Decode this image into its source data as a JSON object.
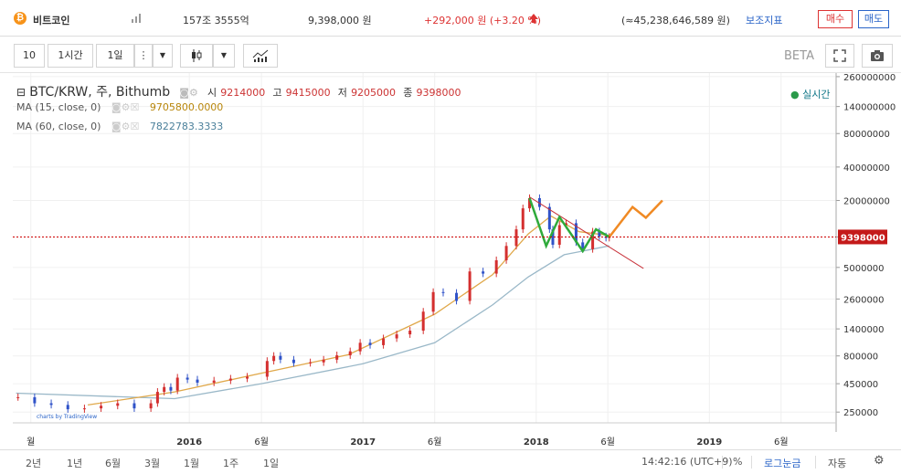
{
  "header": {
    "coin_name": "비트코인",
    "market_cap": "157조 3555억",
    "price": "9,398,000 원",
    "change": "+292,000 원 (+3.20 %)",
    "volume": "(≈45,238,646,589 원)",
    "indicator_label": "보조지표",
    "buy_label": "매수",
    "sell_label": "매도"
  },
  "toolbar": {
    "interval_num": "10",
    "interval_hour": "1시간",
    "interval_day": "1일",
    "beta": "BETA"
  },
  "legend": {
    "symbol": "BTC/KRW, 주, Bithumb",
    "open_label": "시",
    "open": "9214000",
    "high_label": "고",
    "high": "9415000",
    "low_label": "저",
    "low": "9205000",
    "close_label": "종",
    "close": "9398000",
    "ma15_label": "MA (15, close, 0)",
    "ma15_value": "9705800.0000",
    "ma60_label": "MA (60, close, 0)",
    "ma60_value": "7822783.3333",
    "live": "실시간"
  },
  "watermark": "charts by TradingView",
  "bottom": {
    "ranges": [
      "2년",
      "1년",
      "6월",
      "3월",
      "1월",
      "1주",
      "1일"
    ],
    "time": "14:42:16 (UTC+9)",
    "percent": "%",
    "log": "로그눈금",
    "auto": "자동"
  },
  "colors": {
    "up": "#d42f2f",
    "down": "#2f52c8",
    "ma15": "#e0a84a",
    "ma60": "#9ab8c8",
    "forecast": "#f08a24",
    "pattern": "#2eaa3a",
    "trend": "#c8323a"
  },
  "chart_data": {
    "type": "candlestick",
    "scale": "log",
    "ylim": [
      200000,
      280000000
    ],
    "y_ticks": [
      260000000,
      140000000,
      80000000,
      40000000,
      20000000,
      9398000,
      5000000,
      2600000,
      1400000,
      800000,
      450000,
      250000
    ],
    "y_tick_labels": [
      "260000000",
      "140000000",
      "80000000",
      "40000000",
      "20000000",
      "9398000",
      "5000000",
      "2600000",
      "1400000",
      "800000",
      "450000",
      "250000"
    ],
    "x_ticks": [
      "월",
      "2016",
      "6월",
      "2017",
      "6월",
      "2018",
      "6월",
      "2019",
      "6월"
    ],
    "x_tick_dates": [
      "2015-02-01",
      "2016-01-01",
      "2016-06-01",
      "2017-01-01",
      "2017-06-01",
      "2018-01-01",
      "2018-06-01",
      "2019-01-01",
      "2019-06-01"
    ],
    "current_price": 9398000,
    "weekly_close": [
      [
        "2015-01-05",
        340000
      ],
      [
        "2015-02-09",
        300000
      ],
      [
        "2015-03-16",
        290000
      ],
      [
        "2015-04-20",
        265000
      ],
      [
        "2015-05-25",
        270000
      ],
      [
        "2015-06-29",
        285000
      ],
      [
        "2015-08-03",
        300000
      ],
      [
        "2015-09-07",
        270000
      ],
      [
        "2015-10-12",
        300000
      ],
      [
        "2015-10-26",
        380000
      ],
      [
        "2015-11-09",
        420000
      ],
      [
        "2015-11-23",
        390000
      ],
      [
        "2015-12-07",
        510000
      ],
      [
        "2015-12-28",
        490000
      ],
      [
        "2016-01-18",
        460000
      ],
      [
        "2016-02-22",
        480000
      ],
      [
        "2016-03-28",
        500000
      ],
      [
        "2016-05-02",
        520000
      ],
      [
        "2016-06-13",
        720000
      ],
      [
        "2016-06-27",
        800000
      ],
      [
        "2016-07-11",
        740000
      ],
      [
        "2016-08-08",
        690000
      ],
      [
        "2016-09-12",
        700000
      ],
      [
        "2016-10-10",
        740000
      ],
      [
        "2016-11-07",
        810000
      ],
      [
        "2016-12-05",
        880000
      ],
      [
        "2016-12-26",
        1050000
      ],
      [
        "2017-01-16",
        1000000
      ],
      [
        "2017-02-13",
        1150000
      ],
      [
        "2017-03-13",
        1250000
      ],
      [
        "2017-04-10",
        1350000
      ],
      [
        "2017-05-08",
        2000000
      ],
      [
        "2017-05-29",
        3000000
      ],
      [
        "2017-06-19",
        2950000
      ],
      [
        "2017-07-17",
        2500000
      ],
      [
        "2017-08-14",
        4600000
      ],
      [
        "2017-09-11",
        4400000
      ],
      [
        "2017-10-09",
        5800000
      ],
      [
        "2017-10-30",
        7800000
      ],
      [
        "2017-11-20",
        11000000
      ],
      [
        "2017-12-04",
        17000000
      ],
      [
        "2017-12-18",
        21000000
      ],
      [
        "2018-01-08",
        17500000
      ],
      [
        "2018-01-29",
        11000000
      ],
      [
        "2018-02-05",
        8000000
      ],
      [
        "2018-02-19",
        12000000
      ],
      [
        "2018-03-05",
        12500000
      ],
      [
        "2018-03-26",
        8400000
      ],
      [
        "2018-04-09",
        7300000
      ],
      [
        "2018-04-30",
        10500000
      ],
      [
        "2018-05-14",
        9500000
      ],
      [
        "2018-05-28",
        9214000
      ],
      [
        "2018-06-04",
        9398000
      ]
    ],
    "ma15": [
      [
        "2015-06-01",
        290000
      ],
      [
        "2015-12-01",
        380000
      ],
      [
        "2016-06-01",
        560000
      ],
      [
        "2016-12-01",
        820000
      ],
      [
        "2017-06-01",
        1900000
      ],
      [
        "2017-10-01",
        4300000
      ],
      [
        "2017-12-15",
        10000000
      ],
      [
        "2018-02-01",
        14500000
      ],
      [
        "2018-04-01",
        10500000
      ],
      [
        "2018-06-04",
        9705800
      ]
    ],
    "ma60": [
      [
        "2015-01-01",
        370000
      ],
      [
        "2015-12-01",
        330000
      ],
      [
        "2016-06-01",
        450000
      ],
      [
        "2017-01-01",
        680000
      ],
      [
        "2017-06-01",
        1050000
      ],
      [
        "2017-10-01",
        2300000
      ],
      [
        "2017-12-15",
        4100000
      ],
      [
        "2018-03-01",
        6500000
      ],
      [
        "2018-06-04",
        7822783
      ]
    ],
    "trendline": [
      [
        "2017-12-18",
        21500000
      ],
      [
        "2018-08-15",
        4900000
      ]
    ],
    "pattern": [
      [
        "2017-12-18",
        21000000
      ],
      [
        "2018-01-22",
        7800000
      ],
      [
        "2018-02-19",
        14200000
      ],
      [
        "2018-04-09",
        7000000
      ],
      [
        "2018-05-07",
        11000000
      ],
      [
        "2018-06-04",
        9400000
      ]
    ],
    "forecast": [
      [
        "2018-06-04",
        9398000
      ],
      [
        "2018-07-23",
        17500000
      ],
      [
        "2018-08-20",
        14000000
      ],
      [
        "2018-09-24",
        20000000
      ]
    ]
  }
}
